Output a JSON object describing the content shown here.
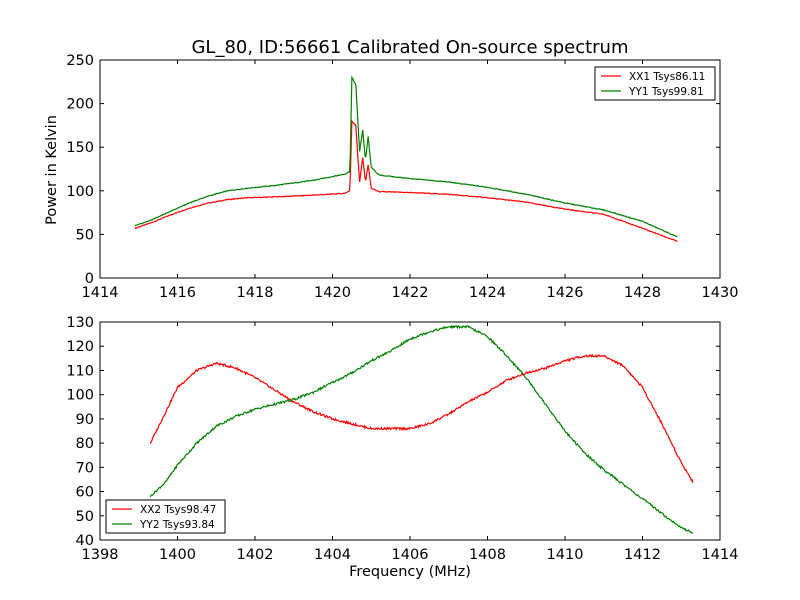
{
  "chart_data": [
    {
      "type": "line",
      "title": "GL_80, ID:56661 Calibrated On-source spectrum",
      "xlabel": "",
      "ylabel": "Power in Kelvin",
      "xlim": [
        1414,
        1430
      ],
      "ylim": [
        0,
        250
      ],
      "xticks": [
        1414,
        1416,
        1418,
        1420,
        1422,
        1424,
        1426,
        1428,
        1430
      ],
      "yticks": [
        0,
        50,
        100,
        150,
        200,
        250
      ],
      "grid": false,
      "legend_position": "top-right",
      "series": [
        {
          "name": "XX1 Tsys86.11",
          "color": "#ff0000",
          "points": [
            [
              1414.9,
              57
            ],
            [
              1415.3,
              63
            ],
            [
              1415.8,
              72
            ],
            [
              1416.3,
              80
            ],
            [
              1416.8,
              86
            ],
            [
              1417.3,
              90
            ],
            [
              1417.8,
              92
            ],
            [
              1418.5,
              93
            ],
            [
              1419.5,
              95
            ],
            [
              1420.3,
              97
            ],
            [
              1420.45,
              100
            ],
            [
              1420.5,
              180
            ],
            [
              1420.6,
              175
            ],
            [
              1420.7,
              110
            ],
            [
              1420.78,
              138
            ],
            [
              1420.85,
              110
            ],
            [
              1420.92,
              130
            ],
            [
              1421.0,
              103
            ],
            [
              1421.2,
              99
            ],
            [
              1422.0,
              98
            ],
            [
              1423.0,
              96
            ],
            [
              1424.0,
              92
            ],
            [
              1425.0,
              87
            ],
            [
              1426.0,
              79
            ],
            [
              1427.0,
              73
            ],
            [
              1428.0,
              57
            ],
            [
              1428.9,
              42
            ]
          ]
        },
        {
          "name": "YY1 Tsys99.81",
          "color": "#008000",
          "points": [
            [
              1414.9,
              60
            ],
            [
              1415.3,
              66
            ],
            [
              1415.8,
              76
            ],
            [
              1416.3,
              86
            ],
            [
              1416.8,
              94
            ],
            [
              1417.3,
              100
            ],
            [
              1417.8,
              103
            ],
            [
              1418.5,
              106
            ],
            [
              1419.5,
              112
            ],
            [
              1420.3,
              119
            ],
            [
              1420.45,
              122
            ],
            [
              1420.5,
              230
            ],
            [
              1420.6,
              222
            ],
            [
              1420.7,
              145
            ],
            [
              1420.78,
              170
            ],
            [
              1420.85,
              135
            ],
            [
              1420.92,
              162
            ],
            [
              1421.0,
              127
            ],
            [
              1421.2,
              118
            ],
            [
              1422.0,
              114
            ],
            [
              1423.0,
              110
            ],
            [
              1424.0,
              104
            ],
            [
              1425.0,
              96
            ],
            [
              1426.0,
              86
            ],
            [
              1427.0,
              78
            ],
            [
              1428.0,
              65
            ],
            [
              1428.9,
              47
            ]
          ]
        }
      ]
    },
    {
      "type": "line",
      "title": "",
      "xlabel": "Frequency (MHz)",
      "ylabel": "",
      "xlim": [
        1398,
        1414
      ],
      "ylim": [
        40,
        130
      ],
      "xticks": [
        1398,
        1400,
        1402,
        1404,
        1406,
        1408,
        1410,
        1412,
        1414
      ],
      "yticks": [
        40,
        50,
        60,
        70,
        80,
        90,
        100,
        110,
        120,
        130
      ],
      "grid": false,
      "legend_position": "bottom-left",
      "series": [
        {
          "name": "XX2 Tsys98.47",
          "color": "#ff0000",
          "points": [
            [
              1399.3,
              80
            ],
            [
              1399.7,
              93
            ],
            [
              1400.0,
              103
            ],
            [
              1400.5,
              110
            ],
            [
              1401.0,
              113
            ],
            [
              1401.5,
              111
            ],
            [
              1402.0,
              107
            ],
            [
              1402.5,
              102
            ],
            [
              1403.0,
              97
            ],
            [
              1403.5,
              93
            ],
            [
              1404.0,
              90
            ],
            [
              1404.5,
              88
            ],
            [
              1405.0,
              86
            ],
            [
              1405.5,
              86
            ],
            [
              1406.0,
              86
            ],
            [
              1406.5,
              88
            ],
            [
              1407.0,
              92
            ],
            [
              1407.5,
              97
            ],
            [
              1408.0,
              101
            ],
            [
              1408.5,
              106
            ],
            [
              1409.0,
              109
            ],
            [
              1409.5,
              111
            ],
            [
              1410.0,
              114
            ],
            [
              1410.5,
              116
            ],
            [
              1411.0,
              116
            ],
            [
              1411.5,
              112
            ],
            [
              1412.0,
              103
            ],
            [
              1412.5,
              88
            ],
            [
              1413.0,
              72
            ],
            [
              1413.3,
              64
            ]
          ]
        },
        {
          "name": "YY2 Tsys93.84",
          "color": "#008000",
          "points": [
            [
              1399.3,
              58
            ],
            [
              1399.7,
              64
            ],
            [
              1400.0,
              71
            ],
            [
              1400.5,
              80
            ],
            [
              1401.0,
              87
            ],
            [
              1401.5,
              91
            ],
            [
              1402.0,
              94
            ],
            [
              1402.5,
              96
            ],
            [
              1403.0,
              98
            ],
            [
              1403.5,
              101
            ],
            [
              1404.0,
              105
            ],
            [
              1404.5,
              109
            ],
            [
              1405.0,
              114
            ],
            [
              1405.5,
              118
            ],
            [
              1406.0,
              123
            ],
            [
              1406.5,
              126
            ],
            [
              1407.0,
              128
            ],
            [
              1407.5,
              128
            ],
            [
              1408.0,
              124
            ],
            [
              1408.5,
              116
            ],
            [
              1409.0,
              107
            ],
            [
              1409.5,
              96
            ],
            [
              1410.0,
              85
            ],
            [
              1410.5,
              76
            ],
            [
              1411.0,
              69
            ],
            [
              1411.5,
              63
            ],
            [
              1412.0,
              57
            ],
            [
              1412.5,
              51
            ],
            [
              1413.0,
              45
            ],
            [
              1413.3,
              43
            ]
          ]
        }
      ]
    }
  ]
}
